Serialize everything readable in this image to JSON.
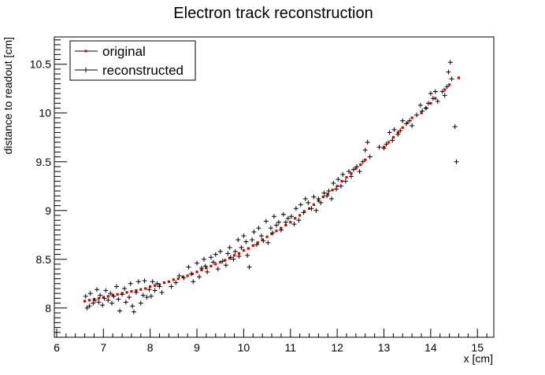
{
  "chart_data": {
    "type": "scatter",
    "title": "Electron track reconstruction",
    "xlabel": "x [cm]",
    "ylabel": "distance to readout [cm]",
    "xlim": [
      5.95,
      15.35
    ],
    "ylim": [
      7.7,
      10.78
    ],
    "xticks": [
      6,
      7,
      8,
      9,
      10,
      11,
      12,
      13,
      14,
      15
    ],
    "xtick_labels": [
      "6",
      "7",
      "8",
      "9",
      "10",
      "11",
      "12",
      "13",
      "14",
      "15"
    ],
    "yticks": [
      8,
      8.5,
      9,
      9.5,
      10,
      10.5
    ],
    "ytick_labels": [
      "8",
      "8.5",
      "9",
      "9.5",
      "10",
      "10.5"
    ],
    "legend_position": "top-left",
    "grid": false,
    "series": [
      {
        "name": "original",
        "color": "#d40000",
        "marker": "square",
        "points": [
          [
            6.6,
            8.07
          ],
          [
            6.7,
            8.08
          ],
          [
            6.8,
            8.09
          ],
          [
            6.9,
            8.1
          ],
          [
            7.0,
            8.11
          ],
          [
            7.1,
            8.12
          ],
          [
            7.2,
            8.13
          ],
          [
            7.3,
            8.14
          ],
          [
            7.4,
            8.15
          ],
          [
            7.5,
            8.16
          ],
          [
            7.6,
            8.17
          ],
          [
            7.7,
            8.18
          ],
          [
            7.8,
            8.19
          ],
          [
            7.9,
            8.2
          ],
          [
            8.0,
            8.22
          ],
          [
            8.1,
            8.23
          ],
          [
            8.2,
            8.24
          ],
          [
            8.3,
            8.26
          ],
          [
            8.4,
            8.27
          ],
          [
            8.5,
            8.29
          ],
          [
            8.6,
            8.3
          ],
          [
            8.7,
            8.32
          ],
          [
            8.8,
            8.33
          ],
          [
            8.9,
            8.35
          ],
          [
            9.0,
            8.37
          ],
          [
            9.1,
            8.39
          ],
          [
            9.2,
            8.41
          ],
          [
            9.3,
            8.43
          ],
          [
            9.4,
            8.45
          ],
          [
            9.5,
            8.47
          ],
          [
            9.6,
            8.49
          ],
          [
            9.7,
            8.51
          ],
          [
            9.8,
            8.54
          ],
          [
            9.9,
            8.56
          ],
          [
            10.0,
            8.59
          ],
          [
            10.1,
            8.61
          ],
          [
            10.2,
            8.64
          ],
          [
            10.3,
            8.67
          ],
          [
            10.4,
            8.7
          ],
          [
            10.5,
            8.73
          ],
          [
            10.6,
            8.76
          ],
          [
            10.7,
            8.79
          ],
          [
            10.8,
            8.82
          ],
          [
            10.9,
            8.85
          ],
          [
            11.0,
            8.88
          ],
          [
            11.1,
            8.92
          ],
          [
            11.2,
            8.95
          ],
          [
            11.3,
            8.99
          ],
          [
            11.4,
            9.02
          ],
          [
            11.5,
            9.06
          ],
          [
            11.6,
            9.1
          ],
          [
            11.7,
            9.14
          ],
          [
            11.8,
            9.17
          ],
          [
            11.9,
            9.21
          ],
          [
            12.0,
            9.25
          ],
          [
            12.1,
            9.3
          ],
          [
            12.2,
            9.34
          ],
          [
            12.3,
            9.38
          ],
          [
            12.4,
            9.43
          ],
          [
            12.5,
            9.47
          ],
          [
            12.6,
            9.52
          ],
          [
            13.0,
            9.65
          ],
          [
            13.1,
            9.7
          ],
          [
            13.2,
            9.75
          ],
          [
            13.3,
            9.8
          ],
          [
            13.4,
            9.85
          ],
          [
            13.5,
            9.9
          ],
          [
            13.6,
            9.95
          ],
          [
            13.8,
            10.0
          ],
          [
            13.9,
            10.05
          ],
          [
            14.0,
            10.1
          ],
          [
            14.1,
            10.15
          ],
          [
            14.3,
            10.24
          ],
          [
            14.4,
            10.29
          ],
          [
            14.6,
            10.36
          ]
        ]
      },
      {
        "name": "reconstructed",
        "color": "#000000",
        "marker": "cross",
        "points": [
          [
            6.62,
            8.12
          ],
          [
            6.65,
            8.0
          ],
          [
            6.7,
            8.02
          ],
          [
            6.72,
            8.15
          ],
          [
            6.78,
            8.05
          ],
          [
            6.82,
            8.08
          ],
          [
            6.86,
            8.19
          ],
          [
            6.9,
            8.06
          ],
          [
            6.93,
            8.13
          ],
          [
            6.98,
            8.03
          ],
          [
            7.02,
            8.1
          ],
          [
            7.05,
            8.18
          ],
          [
            7.1,
            8.08
          ],
          [
            7.15,
            8.15
          ],
          [
            7.18,
            8.05
          ],
          [
            7.22,
            8.12
          ],
          [
            7.28,
            8.22
          ],
          [
            7.32,
            8.09
          ],
          [
            7.35,
            7.97
          ],
          [
            7.4,
            8.14
          ],
          [
            7.45,
            8.2
          ],
          [
            7.48,
            8.06
          ],
          [
            7.55,
            8.11
          ],
          [
            7.58,
            8.25
          ],
          [
            7.62,
            8.02
          ],
          [
            7.65,
            7.96
          ],
          [
            7.7,
            8.16
          ],
          [
            7.75,
            8.27
          ],
          [
            7.8,
            8.05
          ],
          [
            7.85,
            8.13
          ],
          [
            7.88,
            8.28
          ],
          [
            7.93,
            8.11
          ],
          [
            7.98,
            8.19
          ],
          [
            8.02,
            8.12
          ],
          [
            8.05,
            8.27
          ],
          [
            8.1,
            8.18
          ],
          [
            8.15,
            8.25
          ],
          [
            8.2,
            8.22
          ],
          [
            8.25,
            8.16
          ],
          [
            8.45,
            8.22
          ],
          [
            8.55,
            8.26
          ],
          [
            8.62,
            8.33
          ],
          [
            8.72,
            8.31
          ],
          [
            8.82,
            8.42
          ],
          [
            8.88,
            8.35
          ],
          [
            8.92,
            8.27
          ],
          [
            9.0,
            8.46
          ],
          [
            9.05,
            8.32
          ],
          [
            9.1,
            8.41
          ],
          [
            9.15,
            8.5
          ],
          [
            9.18,
            8.43
          ],
          [
            9.22,
            8.37
          ],
          [
            9.3,
            8.52
          ],
          [
            9.35,
            8.47
          ],
          [
            9.4,
            8.55
          ],
          [
            9.45,
            8.4
          ],
          [
            9.5,
            8.58
          ],
          [
            9.55,
            8.48
          ],
          [
            9.62,
            8.44
          ],
          [
            9.66,
            8.56
          ],
          [
            9.7,
            8.62
          ],
          [
            9.72,
            8.52
          ],
          [
            9.78,
            8.5
          ],
          [
            9.82,
            8.58
          ],
          [
            9.88,
            8.7
          ],
          [
            9.9,
            8.53
          ],
          [
            9.95,
            8.62
          ],
          [
            10.0,
            8.74
          ],
          [
            10.05,
            8.68
          ],
          [
            10.08,
            8.54
          ],
          [
            10.12,
            8.42
          ],
          [
            10.18,
            8.7
          ],
          [
            10.22,
            8.78
          ],
          [
            10.28,
            8.65
          ],
          [
            10.32,
            8.82
          ],
          [
            10.38,
            8.74
          ],
          [
            10.42,
            8.69
          ],
          [
            10.48,
            8.89
          ],
          [
            10.52,
            8.67
          ],
          [
            10.58,
            8.82
          ],
          [
            10.62,
            8.77
          ],
          [
            10.65,
            8.94
          ],
          [
            10.7,
            8.85
          ],
          [
            10.75,
            8.88
          ],
          [
            10.8,
            8.8
          ],
          [
            10.85,
            8.96
          ],
          [
            10.9,
            8.88
          ],
          [
            10.95,
            8.92
          ],
          [
            11.02,
            8.94
          ],
          [
            11.08,
            8.86
          ],
          [
            11.12,
            9.02
          ],
          [
            11.18,
            8.9
          ],
          [
            11.22,
            9.06
          ],
          [
            11.28,
            8.98
          ],
          [
            11.32,
            9.12
          ],
          [
            11.38,
            9.08
          ],
          [
            11.45,
            9.02
          ],
          [
            11.5,
            9.14
          ],
          [
            11.55,
            9.0
          ],
          [
            11.6,
            9.12
          ],
          [
            11.65,
            9.08
          ],
          [
            11.72,
            9.18
          ],
          [
            11.78,
            9.15
          ],
          [
            11.82,
            9.2
          ],
          [
            11.88,
            9.12
          ],
          [
            11.92,
            9.28
          ],
          [
            11.98,
            9.22
          ],
          [
            12.02,
            9.32
          ],
          [
            12.08,
            9.25
          ],
          [
            12.12,
            9.37
          ],
          [
            12.18,
            9.3
          ],
          [
            12.25,
            9.4
          ],
          [
            12.3,
            9.35
          ],
          [
            12.35,
            9.42
          ],
          [
            12.42,
            9.45
          ],
          [
            12.48,
            9.4
          ],
          [
            12.55,
            9.5
          ],
          [
            12.6,
            9.62
          ],
          [
            12.65,
            9.7
          ],
          [
            12.7,
            9.55
          ],
          [
            12.9,
            9.65
          ],
          [
            13.0,
            9.64
          ],
          [
            13.05,
            9.68
          ],
          [
            13.12,
            9.8
          ],
          [
            13.18,
            9.72
          ],
          [
            13.22,
            9.83
          ],
          [
            13.3,
            9.78
          ],
          [
            13.35,
            9.82
          ],
          [
            13.4,
            9.92
          ],
          [
            13.48,
            9.89
          ],
          [
            13.55,
            9.92
          ],
          [
            13.6,
            9.87
          ],
          [
            13.7,
            9.98
          ],
          [
            13.78,
            10.08
          ],
          [
            13.82,
            10.02
          ],
          [
            13.9,
            10.05
          ],
          [
            13.95,
            10.1
          ],
          [
            14.0,
            10.2
          ],
          [
            14.05,
            10.15
          ],
          [
            14.1,
            10.22
          ],
          [
            14.15,
            10.12
          ],
          [
            14.25,
            10.22
          ],
          [
            14.3,
            10.18
          ],
          [
            14.35,
            10.27
          ],
          [
            14.38,
            10.42
          ],
          [
            14.42,
            10.52
          ],
          [
            14.45,
            10.35
          ],
          [
            14.52,
            9.86
          ],
          [
            14.55,
            9.5
          ]
        ]
      }
    ]
  }
}
